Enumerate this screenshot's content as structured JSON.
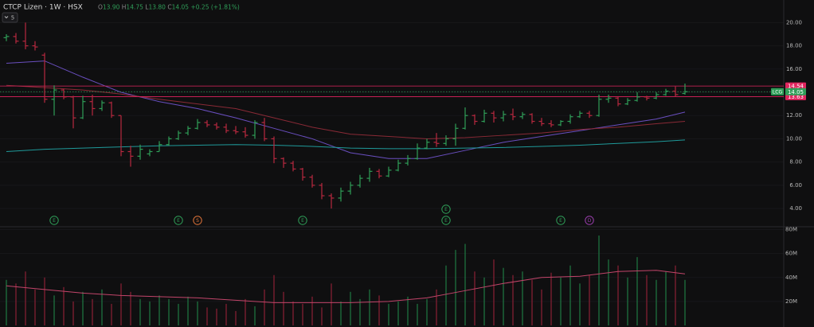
{
  "chart_data": {
    "type": "ohlc",
    "title": "CTCP Lizen · 1W · HSX",
    "ohlc_letters": [
      "O",
      "H",
      "L",
      "C"
    ],
    "ohlc_values": [
      "13.90",
      "14.75",
      "13.80",
      "14.05"
    ],
    "change": "+0.25 (+1.81%)",
    "indicator_count": "5",
    "categories": [
      null,
      null,
      null,
      null,
      null,
      null,
      null,
      null,
      null,
      null,
      null,
      null,
      null,
      null,
      null,
      null,
      null,
      null,
      null,
      null,
      null,
      null,
      null,
      null,
      null,
      null,
      null,
      null,
      null,
      null,
      null,
      null,
      null,
      null,
      null,
      null,
      null,
      null,
      null,
      null,
      null,
      null,
      null,
      null,
      null,
      null,
      null,
      null,
      null,
      null,
      null,
      null,
      null,
      null,
      null,
      null,
      null,
      null,
      null,
      null,
      null,
      null,
      null,
      null,
      null,
      null,
      null,
      null,
      null,
      null,
      null,
      null
    ],
    "open": [
      18.7,
      18.8,
      18.4,
      18.0,
      17.2,
      13.4,
      14.2,
      13.6,
      11.8,
      13.2,
      12.6,
      13.1,
      12.0,
      8.9,
      8.5,
      8.7,
      8.9,
      9.5,
      10.0,
      10.5,
      10.9,
      11.4,
      11.2,
      11.0,
      10.7,
      10.6,
      10.3,
      11.4,
      10.0,
      8.3,
      7.9,
      7.4,
      6.7,
      6.0,
      5.1,
      4.9,
      5.5,
      6.0,
      6.6,
      7.2,
      6.8,
      7.3,
      7.9,
      8.3,
      9.2,
      9.7,
      9.6,
      10.0,
      10.9,
      12.0,
      11.5,
      12.2,
      11.8,
      12.1,
      11.9,
      12.1,
      11.5,
      11.3,
      11.2,
      11.5,
      11.9,
      12.2,
      12.0,
      13.4,
      13.5,
      13.0,
      13.3,
      13.6,
      13.5,
      13.8,
      14.1,
      13.9
    ],
    "high": [
      19.0,
      19.1,
      20.0,
      18.4,
      17.4,
      14.6,
      14.3,
      13.7,
      13.7,
      13.8,
      13.3,
      13.2,
      12.0,
      9.4,
      9.5,
      9.1,
      9.8,
      10.2,
      10.7,
      11.1,
      11.7,
      11.6,
      11.4,
      11.3,
      11.1,
      11.0,
      11.6,
      11.8,
      10.2,
      8.4,
      8.1,
      7.5,
      6.9,
      6.2,
      5.3,
      5.8,
      6.3,
      6.9,
      7.5,
      7.4,
      7.6,
      8.2,
      8.6,
      9.6,
      10.0,
      10.5,
      10.3,
      11.3,
      12.7,
      12.1,
      12.5,
      12.4,
      12.4,
      12.6,
      12.3,
      12.2,
      11.8,
      11.6,
      11.6,
      12.1,
      12.4,
      12.4,
      13.8,
      13.8,
      13.6,
      13.5,
      14.0,
      13.7,
      14.0,
      14.3,
      14.5,
      14.75
    ],
    "low": [
      18.4,
      18.2,
      17.7,
      17.6,
      13.1,
      12.0,
      13.4,
      10.9,
      11.7,
      12.0,
      12.4,
      11.8,
      8.5,
      7.6,
      8.2,
      8.5,
      8.9,
      9.4,
      9.9,
      10.3,
      10.8,
      11.0,
      10.8,
      10.5,
      10.4,
      10.1,
      10.0,
      9.8,
      7.9,
      7.5,
      7.2,
      6.4,
      5.8,
      4.8,
      4.0,
      4.6,
      5.2,
      5.8,
      6.3,
      6.6,
      6.7,
      7.2,
      7.7,
      8.2,
      9.1,
      9.3,
      9.4,
      9.4,
      10.8,
      11.2,
      11.4,
      11.4,
      11.5,
      11.6,
      11.7,
      11.3,
      11.1,
      11.0,
      11.1,
      11.3,
      11.8,
      11.8,
      11.9,
      13.1,
      12.8,
      12.9,
      13.2,
      13.3,
      13.4,
      13.7,
      13.6,
      13.8
    ],
    "close": [
      18.8,
      18.4,
      18.0,
      17.9,
      13.4,
      14.2,
      13.6,
      11.8,
      13.2,
      12.6,
      13.1,
      12.0,
      8.9,
      8.5,
      9.1,
      8.9,
      9.5,
      10.0,
      10.5,
      10.9,
      11.4,
      11.2,
      11.0,
      10.7,
      10.6,
      10.3,
      11.4,
      10.0,
      8.3,
      7.9,
      7.4,
      6.7,
      6.0,
      5.1,
      4.9,
      5.5,
      6.0,
      6.6,
      7.2,
      6.8,
      7.3,
      7.9,
      8.3,
      9.2,
      9.7,
      9.6,
      10.0,
      10.9,
      12.0,
      11.5,
      12.2,
      11.8,
      12.1,
      11.9,
      12.1,
      11.5,
      11.3,
      11.2,
      11.5,
      11.9,
      12.2,
      12.0,
      13.4,
      13.5,
      13.0,
      13.3,
      13.6,
      13.5,
      13.8,
      14.1,
      13.8,
      14.05
    ],
    "up_color": "#2f9e58",
    "down_color": "#b8283f",
    "ylim": [
      2.5,
      21.6
    ],
    "yticks": [
      {
        "value": 4,
        "label": "4.00"
      },
      {
        "value": 6,
        "label": "6.00"
      },
      {
        "value": 8,
        "label": "8.00"
      },
      {
        "value": 10,
        "label": "10.00"
      },
      {
        "value": 12,
        "label": "12.00"
      },
      {
        "value": 14,
        "label": "14.00"
      },
      {
        "value": 16,
        "label": "16.00"
      },
      {
        "value": 18,
        "label": "18.00"
      },
      {
        "value": 20,
        "label": "20.00"
      }
    ],
    "grid": true,
    "overlays": [
      {
        "color": "#6a4fc0",
        "x": [
          0,
          4,
          8,
          12,
          16,
          20,
          24,
          28,
          32,
          36,
          40,
          44,
          48,
          52,
          56,
          60,
          64,
          68,
          71
        ],
        "values": [
          16.5,
          16.7,
          15.3,
          14.0,
          13.2,
          12.6,
          11.8,
          10.9,
          10.0,
          8.8,
          8.3,
          8.3,
          9.0,
          9.7,
          10.2,
          10.7,
          11.2,
          11.7,
          12.3
        ]
      },
      {
        "color": "#8a2a36",
        "x": [
          0,
          4,
          8,
          12,
          16,
          20,
          24,
          28,
          32,
          36,
          40,
          44,
          48,
          52,
          56,
          60,
          64,
          68,
          71
        ],
        "values": [
          14.6,
          14.4,
          14.2,
          13.85,
          13.4,
          13.0,
          12.6,
          11.8,
          11.0,
          10.4,
          10.2,
          10.0,
          10.1,
          10.3,
          10.5,
          10.8,
          11.0,
          11.3,
          11.5
        ]
      },
      {
        "color": "#1f9a9a",
        "x": [
          0,
          4,
          8,
          12,
          16,
          20,
          24,
          28,
          32,
          36,
          40,
          44,
          48,
          52,
          56,
          60,
          64,
          68,
          71
        ],
        "values": [
          8.9,
          9.1,
          9.2,
          9.3,
          9.4,
          9.45,
          9.5,
          9.45,
          9.35,
          9.2,
          9.15,
          9.15,
          9.2,
          9.25,
          9.35,
          9.45,
          9.6,
          9.75,
          9.9
        ]
      }
    ],
    "price_lines": [
      {
        "value": 14.54,
        "color": "#e0245e"
      },
      {
        "value": 13.63,
        "color": "#e0245e"
      }
    ],
    "last_price": {
      "label": "LCG",
      "value": 14.05,
      "color": "#2f9e58"
    },
    "events": [
      {
        "label": "E",
        "index": 5,
        "color": "#2f9e58"
      },
      {
        "label": "E",
        "index": 18,
        "color": "#2f9e58"
      },
      {
        "label": "S",
        "index": 20,
        "color": "#e0743a"
      },
      {
        "label": "E",
        "index": 31,
        "color": "#2f9e58"
      },
      {
        "label": "E",
        "index": 46,
        "color": "#2f9e58"
      },
      {
        "label": "E",
        "index": 46,
        "color": "#2f9e58"
      },
      {
        "label": "E",
        "index": 58,
        "color": "#2f9e58"
      },
      {
        "label": "D",
        "index": 61,
        "color": "#9c3fb0"
      }
    ],
    "volume": {
      "values": [
        38000000,
        35000000,
        45000000,
        30000000,
        40000000,
        25000000,
        32000000,
        20000000,
        28000000,
        22000000,
        30000000,
        18000000,
        35000000,
        28000000,
        22000000,
        20000000,
        25000000,
        22000000,
        18000000,
        24000000,
        20000000,
        15000000,
        14000000,
        18000000,
        12000000,
        22000000,
        16000000,
        30000000,
        42000000,
        28000000,
        20000000,
        18000000,
        24000000,
        15000000,
        35000000,
        20000000,
        28000000,
        22000000,
        30000000,
        25000000,
        18000000,
        20000000,
        24000000,
        18000000,
        22000000,
        30000000,
        50000000,
        63000000,
        68000000,
        45000000,
        40000000,
        55000000,
        48000000,
        42000000,
        45000000,
        38000000,
        30000000,
        44000000,
        40000000,
        50000000,
        35000000,
        42000000,
        75000000,
        55000000,
        50000000,
        40000000,
        57000000,
        42000000,
        38000000,
        45000000,
        50000000,
        38000000
      ],
      "up_color": "#1f7a44",
      "down_color": "#8c2035",
      "ylim": [
        0,
        81000000
      ],
      "yticks": [
        {
          "value": 20000000,
          "label": "20M"
        },
        {
          "value": 40000000,
          "label": "40M"
        },
        {
          "value": 60000000,
          "label": "60M"
        },
        {
          "value": 80000000,
          "label": "80M"
        }
      ],
      "ma": {
        "color": "#c2456a",
        "x": [
          0,
          4,
          8,
          12,
          16,
          20,
          24,
          28,
          32,
          36,
          40,
          44,
          48,
          52,
          56,
          60,
          64,
          68,
          71
        ],
        "values": [
          33000000,
          30000000,
          27000000,
          25000000,
          24000000,
          23000000,
          21000000,
          19000000,
          19000000,
          19000000,
          20000000,
          23000000,
          29000000,
          35000000,
          40000000,
          41000000,
          45000000,
          46000000,
          43000000
        ]
      }
    }
  }
}
